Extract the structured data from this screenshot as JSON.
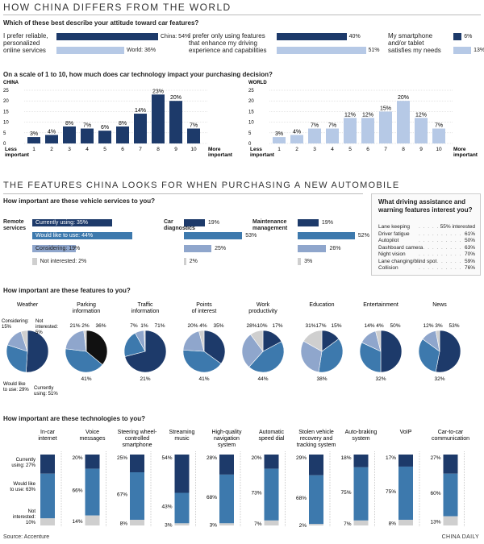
{
  "title": "HOW CHINA DIFFERS FROM THE WORLD",
  "section2_title": "THE FEATURES CHINA LOOKS FOR WHEN PURCHASING A NEW AUTOMOBILE",
  "source": "Source: Accenture",
  "credit": "CHINA DAILY",
  "colors": {
    "dark": "#1d3a6a",
    "mid": "#3d79ad",
    "light": "#b6c9e6",
    "grey": "#cfcfcf"
  },
  "attitude": {
    "question": "Which of these best describe your attitude toward car features?",
    "items": [
      {
        "label_lines": [
          "I prefer reliable,",
          "personalized",
          "online services"
        ],
        "china": 54,
        "world": 36,
        "china_label": "China: 54%",
        "world_label": "World: 36%"
      },
      {
        "label_lines": [
          "I prefer only using features",
          "that enhance my driving",
          "experience and capabilities"
        ],
        "china": 40,
        "world": 51,
        "china_label": "40%",
        "world_label": "51%"
      },
      {
        "label_lines": [
          "My smartphone",
          "and/or tablet",
          "satisfies my needs"
        ],
        "china": 6,
        "world": 13,
        "china_label": "6%",
        "world_label": "13%"
      }
    ]
  },
  "chart_data": [
    {
      "type": "bar",
      "name": "CHINA",
      "title": "CHINA",
      "question": "On a scale of 1 to 10, how much does car technology impact your purchasing decision?",
      "categories": [
        "1",
        "2",
        "3",
        "4",
        "5",
        "6",
        "7",
        "8",
        "9",
        "10"
      ],
      "values": [
        3,
        4,
        8,
        7,
        6,
        8,
        14,
        23,
        20,
        7
      ],
      "value_labels": [
        "3%",
        "4%",
        "8%",
        "7%",
        "6%",
        "8%",
        "14%",
        "23%",
        "20%",
        "7%"
      ],
      "ylim": [
        0,
        25
      ],
      "yticks": [
        "0",
        "5",
        "10",
        "15",
        "20",
        "25"
      ],
      "x_left": [
        "Less",
        "important"
      ],
      "x_right": [
        "More",
        "important"
      ],
      "color": "#1d3a6a"
    },
    {
      "type": "bar",
      "name": "WORLD",
      "title": "WORLD",
      "categories": [
        "1",
        "2",
        "3",
        "4",
        "5",
        "6",
        "7",
        "8",
        "9",
        "10"
      ],
      "values": [
        3,
        4,
        7,
        7,
        12,
        12,
        15,
        20,
        12,
        7
      ],
      "value_labels": [
        "3%",
        "4%",
        "7%",
        "7%",
        "12%",
        "12%",
        "15%",
        "20%",
        "12%",
        "7%"
      ],
      "ylim": [
        0,
        25
      ],
      "yticks": [
        "0",
        "5",
        "10",
        "15",
        "20",
        "25"
      ],
      "x_left": [
        "Less",
        "important"
      ],
      "x_right": [
        "More",
        "important"
      ],
      "color": "#b6c9e6"
    },
    {
      "type": "pie",
      "name": "features",
      "question": "How important are these features to you?",
      "segments_order": [
        "Currently",
        "Would like to use",
        "Considering",
        "Not interested"
      ],
      "pies": [
        {
          "title": [
            "Weather"
          ],
          "values": [
            51,
            29,
            15,
            5
          ],
          "labels": [
            "Currently using: 51%",
            "Would like to use: 29%",
            "Considering: 15%",
            "Not interested: 5%"
          ]
        },
        {
          "title": [
            "Parking",
            "information"
          ],
          "values": [
            36,
            41,
            21,
            2
          ],
          "labels": [
            "36%",
            "41%",
            "21%",
            "2%"
          ],
          "special": "black"
        },
        {
          "title": [
            "Traffic",
            "information"
          ],
          "values": [
            71,
            21,
            7,
            1
          ],
          "labels": [
            "71%",
            "21%",
            "7%",
            "1%"
          ]
        },
        {
          "title": [
            "Points",
            "of interest"
          ],
          "values": [
            35,
            41,
            20,
            4
          ],
          "labels": [
            "35%",
            "41%",
            "20%",
            "4%"
          ]
        },
        {
          "title": [
            "Work",
            "productivity"
          ],
          "values": [
            17,
            44,
            28,
            10
          ],
          "labels": [
            "17%",
            "44%",
            "28%",
            "10%"
          ]
        },
        {
          "title": [
            "Education"
          ],
          "values": [
            15,
            38,
            31,
            17
          ],
          "labels": [
            "15%",
            "38%",
            "31%",
            "17%"
          ]
        },
        {
          "title": [
            "Entertainment"
          ],
          "values": [
            50,
            32,
            14,
            4
          ],
          "labels": [
            "50%",
            "32%",
            "14%",
            "4%"
          ]
        },
        {
          "title": [
            "News"
          ],
          "values": [
            53,
            32,
            12,
            3
          ],
          "labels": [
            "53%",
            "32%",
            "12%",
            "3%"
          ]
        }
      ]
    },
    {
      "type": "bar",
      "name": "technologies",
      "stacked": true,
      "question": "How important are these technologies to you?",
      "series_names": [
        "Currently using",
        "Would like to use",
        "Not interested"
      ],
      "legend_labels": [
        [
          "Currently",
          "using: 27%"
        ],
        [
          "Would like",
          "to use: 63%"
        ],
        [
          "Not",
          "interested:",
          "10%"
        ]
      ],
      "items": [
        {
          "title": [
            "In-car",
            "internet"
          ],
          "values": [
            27,
            63,
            10
          ],
          "labels": [
            "",
            "",
            ""
          ]
        },
        {
          "title": [
            "Voice",
            "messages"
          ],
          "values": [
            20,
            66,
            14
          ],
          "labels": [
            "20%",
            "66%",
            "14%"
          ]
        },
        {
          "title": [
            "Steering wheel-",
            "controlled",
            "smartphone"
          ],
          "values": [
            25,
            67,
            8
          ],
          "labels": [
            "25%",
            "67%",
            "8%"
          ]
        },
        {
          "title": [
            "Streaming",
            "music"
          ],
          "values": [
            54,
            43,
            3
          ],
          "labels": [
            "54%",
            "43%",
            "3%"
          ]
        },
        {
          "title": [
            "High-quality",
            "navigation",
            "system"
          ],
          "values": [
            28,
            68,
            3
          ],
          "labels": [
            "28%",
            "68%",
            "3%"
          ]
        },
        {
          "title": [
            "Automatic",
            "speed dial"
          ],
          "values": [
            20,
            73,
            7
          ],
          "labels": [
            "20%",
            "73%",
            "7%"
          ]
        },
        {
          "title": [
            "Stolen vehicle",
            "recovery and",
            "tracking system"
          ],
          "values": [
            29,
            68,
            2
          ],
          "labels": [
            "29%",
            "68%",
            "2%"
          ]
        },
        {
          "title": [
            "Auto-braking",
            "system"
          ],
          "values": [
            18,
            75,
            7
          ],
          "labels": [
            "18%",
            "75%",
            "7%"
          ]
        },
        {
          "title": [
            "VoIP"
          ],
          "values": [
            17,
            75,
            8
          ],
          "labels": [
            "17%",
            "75%",
            "8%"
          ]
        },
        {
          "title": [
            "Car-to-car",
            "communication"
          ],
          "values": [
            27,
            60,
            13
          ],
          "labels": [
            "27%",
            "60%",
            "13%"
          ]
        }
      ]
    }
  ],
  "services": {
    "question": "How important are these vehicle services to you?",
    "remote": {
      "title_lines": [
        "Remote",
        "services"
      ],
      "rows": [
        {
          "label": "Currently using: 35%",
          "value": 35
        },
        {
          "label": "Would like to use: 44%",
          "value": 44
        },
        {
          "label": "Considering: 19%",
          "value": 19
        },
        {
          "label": "Not interested: 2%",
          "value": 2
        }
      ]
    },
    "diagnostics": {
      "title_lines": [
        "Car",
        "diagnostics"
      ],
      "rows": [
        {
          "label": "19%",
          "value": 19
        },
        {
          "label": "53%",
          "value": 53
        },
        {
          "label": "25%",
          "value": 25
        },
        {
          "label": "2%",
          "value": 2
        }
      ]
    },
    "maintenance": {
      "title_lines": [
        "Maintenance",
        "management"
      ],
      "rows": [
        {
          "label": "19%",
          "value": 19
        },
        {
          "label": "52%",
          "value": 52
        },
        {
          "label": "26%",
          "value": 26
        },
        {
          "label": "3%",
          "value": 3
        }
      ]
    }
  },
  "assist": {
    "question_lines": [
      "What driving assistance and",
      "warning features interest you?"
    ],
    "rows": [
      {
        "name": "Lane keeping",
        "value": "55% interested"
      },
      {
        "name": "Driver fatigue",
        "value": "61%"
      },
      {
        "name": "Autopilot",
        "value": "50%"
      },
      {
        "name": "Dashboard camera",
        "value": "63%"
      },
      {
        "name": "Night vision",
        "value": "70%"
      },
      {
        "name": "Lane changing/blind spot",
        "value": "59%"
      },
      {
        "name": "Collision",
        "value": "76%"
      }
    ]
  }
}
